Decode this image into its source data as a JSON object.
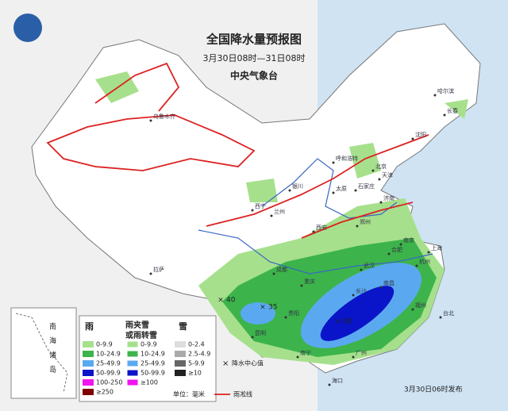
{
  "header": {
    "title": "全国降水量预报图",
    "subtitle": "3月30日08时—31日08时",
    "issuer": "中央气象台"
  },
  "legend": {
    "rain_heading": "雨",
    "sleet_heading": [
      "雨夹雪",
      "或雨转雪"
    ],
    "snow_heading": "雪",
    "rain": [
      {
        "label": "0-9.9",
        "color": "#a6e08c"
      },
      {
        "label": "10-24.9",
        "color": "#3cb44b"
      },
      {
        "label": "25-49.9",
        "color": "#5aa9f0"
      },
      {
        "label": "50-99.9",
        "color": "#0a14c8"
      },
      {
        "label": "100-250",
        "color": "#f014f0"
      },
      {
        "label": "≥250",
        "color": "#800000"
      }
    ],
    "sleet": [
      {
        "label": "0-9.9",
        "color": "#a6e08c"
      },
      {
        "label": "10-24.9",
        "color": "#3cb44b"
      },
      {
        "label": "25-49.9",
        "color": "#5aa9f0"
      },
      {
        "label": "50-99.9",
        "color": "#0a14c8"
      },
      {
        "label": "≥100",
        "color": "#f014f0"
      }
    ],
    "snow": [
      {
        "label": "0-2.4",
        "color": "#dddddd"
      },
      {
        "label": "2.5-4.9",
        "color": "#aaaaaa"
      },
      {
        "label": "5-9.9",
        "color": "#666666"
      },
      {
        "label": "≥10",
        "color": "#222222"
      }
    ],
    "center_value": "降水中心值",
    "unit": "单位：毫米",
    "glaze_line": "雨凇线"
  },
  "center_values": [
    "40",
    "35",
    "80"
  ],
  "cities": [
    "乌鲁木齐",
    "哈尔滨",
    "长春",
    "沈阳",
    "呼和浩特",
    "北京",
    "天津",
    "石家庄",
    "太原",
    "银川",
    "济南",
    "西宁",
    "兰州",
    "郑州",
    "西安",
    "合肥",
    "南京",
    "上海",
    "武汉",
    "杭州",
    "成都",
    "拉萨",
    "重庆",
    "长沙",
    "南昌",
    "贵阳",
    "福州",
    "昆明",
    "南宁",
    "广州",
    "台北",
    "海口"
  ],
  "inset": [
    "南",
    "海",
    "诸",
    "岛"
  ],
  "issued": "3月30日06时发布"
}
